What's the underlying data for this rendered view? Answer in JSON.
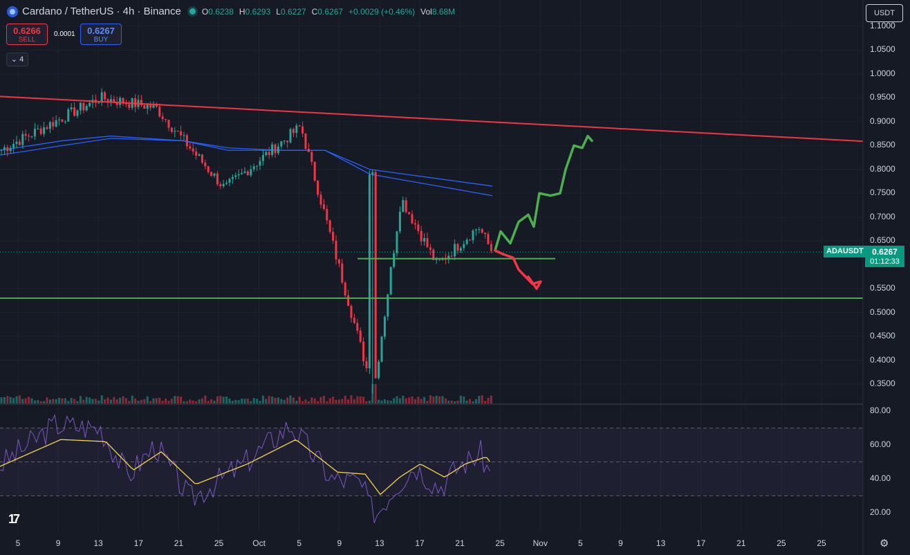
{
  "header": {
    "symbol_title": "Cardano / TetherUS · 4h · Binance",
    "ohlc": [
      {
        "label": "O",
        "value": "0.6238"
      },
      {
        "label": "H",
        "value": "0.6293"
      },
      {
        "label": "L",
        "value": "0.6227"
      },
      {
        "label": "C",
        "value": "0.6267"
      },
      {
        "label": "",
        "value": "+0.0029 (+0.46%)"
      },
      {
        "label": "Vol",
        "value": "8.68M"
      }
    ]
  },
  "trade": {
    "sell_price": "0.6266",
    "sell_label": "SELL",
    "spread": "0.0001",
    "buy_price": "0.6267",
    "buy_label": "BUY"
  },
  "collapse_count": "4",
  "currency": "USDT",
  "current_price": {
    "symbol": "ADAUSDT",
    "price": "0.6267",
    "countdown": "01:12:33"
  },
  "colors": {
    "bull": "#26a69a",
    "bear": "#f23645",
    "trendline": "#f23645",
    "support": "#4caf50",
    "ma": "#2962ff",
    "rsi": "#7e57c2",
    "rsi_ma": "#f9d648"
  },
  "chart_data": [
    {
      "type": "candlestick",
      "title": "",
      "y_axis_ticks": [
        "1.1000",
        "1.0500",
        "1.0000",
        "0.9500",
        "0.9000",
        "0.8500",
        "0.8000",
        "0.7500",
        "0.7000",
        "0.6500",
        "0.5500",
        "0.5000",
        "0.4500",
        "0.4000",
        "0.3500"
      ],
      "ylim": [
        0.32,
        1.11
      ],
      "x_axis_ticks": [
        "5",
        "9",
        "13",
        "17",
        "21",
        "25",
        "Oct",
        "5",
        "9",
        "13",
        "17",
        "21",
        "25",
        "Nov",
        "5",
        "9",
        "13",
        "17",
        "21",
        "25",
        "25"
      ],
      "key_points": [
        {
          "label": "start",
          "value": 0.84
        },
        {
          "label": "Sep 13 high",
          "value": 0.95
        },
        {
          "label": "Sep 18 high",
          "value": 0.93
        },
        {
          "label": "Sep 25 low",
          "value": 0.76
        },
        {
          "label": "Oct 3 high",
          "value": 0.89
        },
        {
          "label": "Oct 10 flash crash low",
          "value": 0.33
        },
        {
          "label": "Oct 13 rebound high",
          "value": 0.74
        },
        {
          "label": "Oct 17 low",
          "value": 0.6
        },
        {
          "label": "Oct 21 high",
          "value": 0.68
        },
        {
          "label": "last",
          "value": 0.6267
        }
      ],
      "trendline": {
        "from": 0.953,
        "to": 0.859
      },
      "support_levels": [
        0.613,
        0.53
      ],
      "moving_averages": [
        {
          "points": [
            0.84,
            0.86,
            0.87,
            0.86,
            0.845,
            0.84,
            0.84,
            0.8,
            0.765
          ]
        },
        {
          "points": [
            0.83,
            0.85,
            0.865,
            0.86,
            0.84,
            0.84,
            0.84,
            0.79,
            0.745
          ]
        }
      ],
      "projection_up_target": 0.87,
      "projection_down_target": 0.55
    },
    {
      "type": "line",
      "title": "",
      "y_axis_ticks": [
        "80.00",
        "60.00",
        "40.00",
        "20.00"
      ],
      "ylim": [
        12,
        82
      ],
      "bands": [
        70,
        50,
        30
      ]
    }
  ]
}
